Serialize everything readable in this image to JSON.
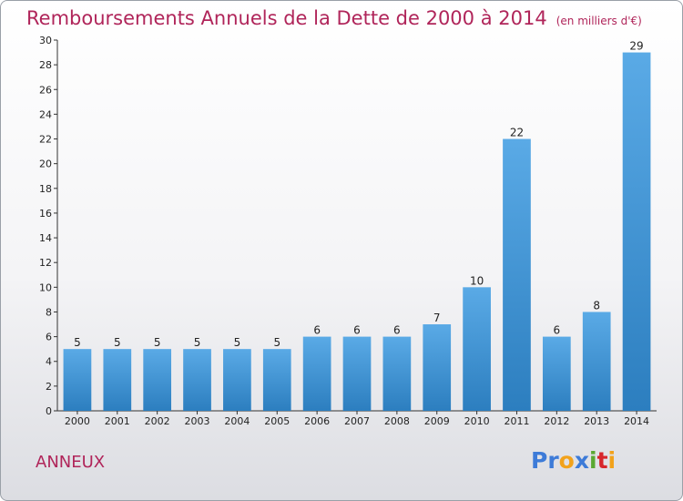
{
  "header": {
    "title": "Remboursements Annuels de la Dette de 2000 à 2014",
    "unit": "(en milliers d'€)"
  },
  "footer": {
    "commune": "ANNEUX",
    "logo_letters": [
      "P",
      "r",
      "o",
      "x",
      "i",
      "t",
      "i"
    ],
    "logo_colors": [
      "#3d7bd8",
      "#3d7bd8",
      "#f2a21b",
      "#3d7bd8",
      "#5aa832",
      "#d7262c",
      "#f2a21b"
    ]
  },
  "chart_data": {
    "type": "bar",
    "title": "Remboursements Annuels de la Dette de 2000 à 2014",
    "xlabel": "",
    "ylabel": "",
    "categories": [
      "2000",
      "2001",
      "2002",
      "2003",
      "2004",
      "2005",
      "2006",
      "2007",
      "2008",
      "2009",
      "2010",
      "2011",
      "2012",
      "2013",
      "2014"
    ],
    "values": [
      5,
      5,
      5,
      5,
      5,
      5,
      6,
      6,
      6,
      7,
      10,
      22,
      6,
      8,
      29
    ],
    "ylim": [
      0,
      30
    ],
    "yticks": [
      0,
      2,
      4,
      6,
      8,
      10,
      12,
      14,
      16,
      18,
      20,
      22,
      24,
      26,
      28,
      30
    ],
    "grid": false,
    "data_labels": true,
    "bar_color_top": "#5aaae6",
    "bar_color_bottom": "#2c7ebf"
  }
}
